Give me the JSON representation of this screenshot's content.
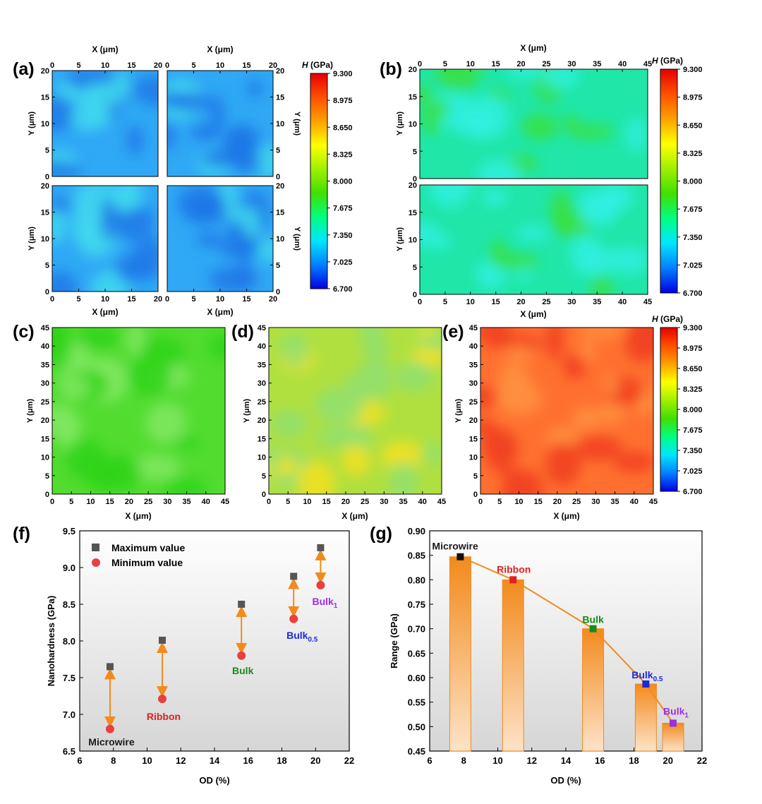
{
  "panel_labels": {
    "a": "(a)",
    "b": "(b)",
    "c": "(c)",
    "d": "(d)",
    "e": "(e)",
    "f": "(f)",
    "g": "(g)"
  },
  "axis_text": {
    "x": "X (μm)",
    "y": "Y (μm)",
    "od": "OD (%)"
  },
  "colorbar": {
    "title_italic": "H",
    "title_unit": " (GPa)",
    "ticks": [
      "9.300",
      "8.975",
      "8.650",
      "8.325",
      "8.000",
      "7.675",
      "7.350",
      "7.025",
      "6.700"
    ],
    "colors": [
      "#0000e6",
      "#0080ff",
      "#00e6ff",
      "#00ff80",
      "#40e000",
      "#a0f000",
      "#ffff00",
      "#ffa000",
      "#ff5000",
      "#e60000"
    ]
  },
  "colors": {
    "a_bg": "#2fa8f5",
    "a_low": "#1f78e8",
    "a_high": "#40d8ee",
    "b_bg": "#20e6a8",
    "b_low": "#30f0e0",
    "b_high": "#38e040",
    "c_bg": "#52dc30",
    "c_low": "#80e860",
    "c_high": "#30d418",
    "d_bg": "#b0e040",
    "d_low": "#90e070",
    "d_high": "#f2e020",
    "e_bg": "#ff7030",
    "e_low": "#ff9040",
    "e_high": "#f04020",
    "max_marker": "#555555",
    "min_marker": "#e84040",
    "arrow": "#f28a1c",
    "bar": "#f28a1c",
    "line": "#f28a1c"
  },
  "chart_data": [
    {
      "id": "a",
      "type": "heatmap",
      "description_of_axes": "four 20x20 um maps",
      "x_ticks": [
        "0",
        "5",
        "10",
        "15",
        "20"
      ],
      "y_ticks": [
        "0",
        "5",
        "10",
        "15",
        "20"
      ],
      "xlabel": "X (μm)",
      "ylabel": "Y (μm)",
      "xlim": [
        0,
        20
      ],
      "ylim": [
        0,
        20
      ],
      "value_range": [
        6.7,
        9.3
      ]
    },
    {
      "id": "b",
      "type": "heatmap",
      "x_ticks": [
        "0",
        "5",
        "10",
        "15",
        "20",
        "25",
        "30",
        "35",
        "40",
        "45"
      ],
      "y_ticks": [
        "0",
        "5",
        "10",
        "15",
        "20"
      ],
      "xlabel": "X (μm)",
      "ylabel": "Y (μm)",
      "xlim": [
        0,
        45
      ],
      "ylim": [
        0,
        20
      ],
      "value_range": [
        6.7,
        9.3
      ]
    },
    {
      "id": "c",
      "type": "heatmap",
      "x_ticks": [
        "0",
        "5",
        "10",
        "15",
        "20",
        "25",
        "30",
        "35",
        "40",
        "45"
      ],
      "y_ticks": [
        "0",
        "5",
        "10",
        "15",
        "20",
        "25",
        "30",
        "35",
        "40",
        "45"
      ],
      "xlabel": "X (μm)",
      "ylabel": "Y (μm)",
      "xlim": [
        0,
        45
      ],
      "ylim": [
        0,
        45
      ],
      "value_range": [
        6.7,
        9.3
      ]
    },
    {
      "id": "d",
      "type": "heatmap",
      "x_ticks": [
        "0",
        "5",
        "10",
        "15",
        "20",
        "25",
        "30",
        "35",
        "40",
        "45"
      ],
      "y_ticks": [
        "0",
        "5",
        "10",
        "15",
        "20",
        "25",
        "30",
        "35",
        "40",
        "45"
      ],
      "xlabel": "X (μm)",
      "ylabel": "Y (μm)",
      "xlim": [
        0,
        45
      ],
      "ylim": [
        0,
        45
      ],
      "value_range": [
        6.7,
        9.3
      ]
    },
    {
      "id": "e",
      "type": "heatmap",
      "x_ticks": [
        "0",
        "5",
        "10",
        "15",
        "20",
        "25",
        "30",
        "35",
        "40",
        "45"
      ],
      "y_ticks": [
        "0",
        "5",
        "10",
        "15",
        "20",
        "25",
        "30",
        "35",
        "40",
        "45"
      ],
      "xlabel": "X (μm)",
      "ylabel": "Y (μm)",
      "xlim": [
        0,
        45
      ],
      "ylim": [
        0,
        45
      ],
      "value_range": [
        6.7,
        9.3
      ]
    },
    {
      "id": "f",
      "type": "scatter",
      "xlabel": "OD (%)",
      "ylabel": "Nanohardness (GPa)",
      "xlim": [
        6,
        22
      ],
      "ylim": [
        6.5,
        9.5
      ],
      "x_ticks": [
        "6",
        "8",
        "10",
        "12",
        "14",
        "16",
        "18",
        "20",
        "22"
      ],
      "y_ticks": [
        "6.5",
        "7.0",
        "7.5",
        "8.0",
        "8.5",
        "9.0",
        "9.5"
      ],
      "legend": [
        {
          "label": "Maximum value"
        },
        {
          "label": "Minimum value"
        }
      ],
      "points": [
        {
          "label": "Microwire",
          "sub": "",
          "label_color": "#1a1a1a",
          "x": 7.8,
          "max": 7.65,
          "min": 6.8
        },
        {
          "label": "Ribbon",
          "sub": "",
          "label_color": "#e02020",
          "x": 10.9,
          "max": 8.01,
          "min": 7.21
        },
        {
          "label": "Bulk",
          "sub": "",
          "label_color": "#1a8a1a",
          "x": 15.6,
          "max": 8.5,
          "min": 7.8
        },
        {
          "label": "Bulk",
          "sub": "0.5",
          "label_color": "#1a2adc",
          "x": 18.7,
          "max": 8.88,
          "min": 8.3
        },
        {
          "label": "Bulk",
          "sub": "1",
          "label_color": "#9b2fe0",
          "x": 20.3,
          "max": 9.27,
          "min": 8.76
        }
      ]
    },
    {
      "id": "g",
      "type": "bar",
      "xlabel": "OD (%)",
      "ylabel": "Range (GPa)",
      "xlim": [
        6,
        22
      ],
      "ylim": [
        0.45,
        0.9
      ],
      "x_ticks": [
        "6",
        "8",
        "10",
        "12",
        "14",
        "16",
        "18",
        "20",
        "22"
      ],
      "y_ticks": [
        "0.45",
        "0.50",
        "0.55",
        "0.60",
        "0.65",
        "0.70",
        "0.75",
        "0.80",
        "0.85",
        "0.90"
      ],
      "points": [
        {
          "label": "Microwire",
          "sub": "",
          "label_color": "#1a1a1a",
          "x": 7.8,
          "value": 0.847,
          "marker": "#111111"
        },
        {
          "label": "Ribbon",
          "sub": "",
          "label_color": "#e02020",
          "x": 10.9,
          "value": 0.8,
          "marker": "#e02020"
        },
        {
          "label": "Bulk",
          "sub": "",
          "label_color": "#1a8a1a",
          "x": 15.6,
          "value": 0.7,
          "marker": "#1a8a1a"
        },
        {
          "label": "Bulk",
          "sub": "0.5",
          "label_color": "#1a2adc",
          "x": 18.7,
          "value": 0.587,
          "marker": "#1a2adc"
        },
        {
          "label": "Bulk",
          "sub": "1",
          "label_color": "#9b2fe0",
          "x": 20.3,
          "value": 0.507,
          "marker": "#9b2fe0"
        }
      ]
    }
  ]
}
